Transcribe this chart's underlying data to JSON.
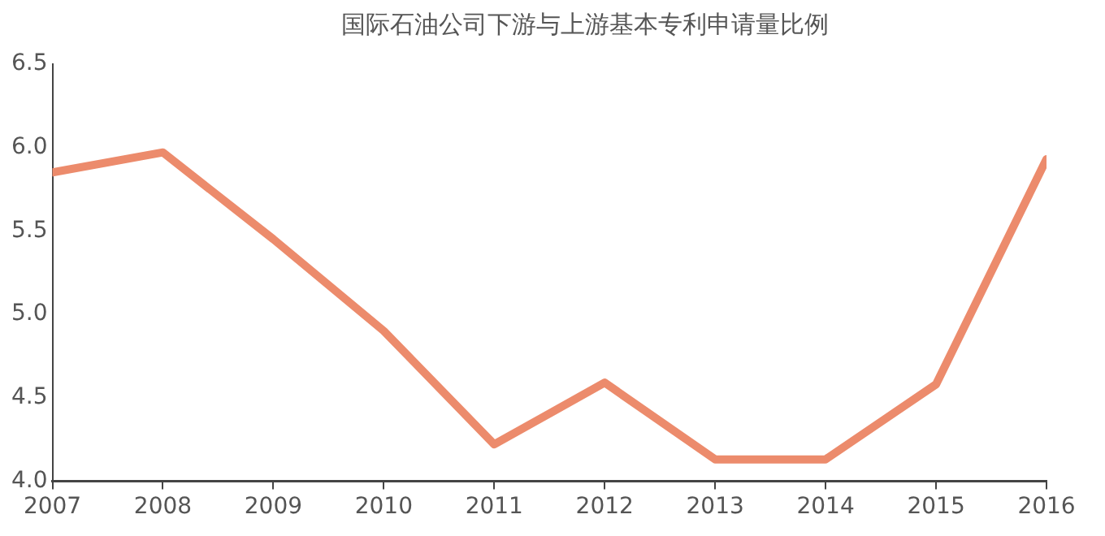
{
  "chart_data": {
    "type": "line",
    "title": "国际石油公司下游与上游基本专利申请量比例",
    "x": [
      2007,
      2008,
      2009,
      2010,
      2011,
      2012,
      2013,
      2014,
      2015,
      2016
    ],
    "series": [
      {
        "color": "#ec8b6c",
        "values": [
          5.85,
          5.97,
          5.45,
          4.9,
          4.22,
          4.59,
          4.13,
          4.13,
          4.58,
          5.93
        ]
      }
    ],
    "xlim": [
      2007,
      2016
    ],
    "xticks": [
      2007,
      2008,
      2009,
      2010,
      2011,
      2012,
      2013,
      2014,
      2015,
      2016
    ],
    "ylim": [
      4.0,
      6.5
    ],
    "yticks": [
      {
        "value": 4.0,
        "label": "4.0"
      },
      {
        "value": 4.5,
        "label": "4.5"
      },
      {
        "value": 5.0,
        "label": "5.0"
      },
      {
        "value": 5.5,
        "label": "5.5"
      },
      {
        "value": 6.0,
        "label": "6.0"
      },
      {
        "value": 6.5,
        "label": "6.5"
      }
    ],
    "grid": false,
    "legend": false,
    "marker": "none",
    "line_style": "solid"
  }
}
